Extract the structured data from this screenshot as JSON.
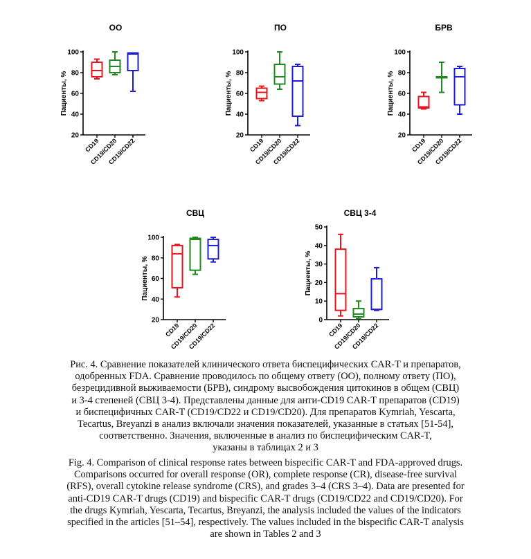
{
  "chart_data": [
    {
      "type": "box",
      "title": "ОО",
      "ylabel": "Пациенты, %",
      "ylim": [
        20,
        100
      ],
      "yticks": [
        20,
        40,
        60,
        80,
        100
      ],
      "categories": [
        "CD19",
        "CD19/CD20",
        "CD19/CD22"
      ],
      "series": [
        {
          "name": "CD19",
          "color": "#e8141c",
          "min": 74,
          "q1": 76,
          "median": 82,
          "q3": 90,
          "max": 93
        },
        {
          "name": "CD19/CD20",
          "color": "#1f8a1f",
          "min": 78,
          "q1": 80,
          "median": 86,
          "q3": 92,
          "max": 100
        },
        {
          "name": "CD19/CD22",
          "color": "#1c1cd6",
          "min": 62,
          "q1": 82,
          "median": 98,
          "q3": 99,
          "max": 99
        }
      ]
    },
    {
      "type": "box",
      "title": "ПО",
      "ylabel": "Пациенты, %",
      "ylim": [
        20,
        100
      ],
      "yticks": [
        20,
        40,
        60,
        80,
        100
      ],
      "categories": [
        "CD19",
        "CD19/CD20",
        "CD19/CD22"
      ],
      "series": [
        {
          "name": "CD19",
          "color": "#e8141c",
          "min": 53,
          "q1": 55,
          "median": 61,
          "q3": 65,
          "max": 67
        },
        {
          "name": "CD19/CD20",
          "color": "#1f8a1f",
          "min": 64,
          "q1": 69,
          "median": 76,
          "q3": 88,
          "max": 100
        },
        {
          "name": "CD19/CD22",
          "color": "#1c1cd6",
          "min": 29,
          "q1": 38,
          "median": 72,
          "q3": 86,
          "max": 88
        }
      ]
    },
    {
      "type": "box",
      "title": "БРВ",
      "ylabel": "Пациенты, %",
      "ylim": [
        20,
        100
      ],
      "yticks": [
        20,
        40,
        60,
        80,
        100
      ],
      "categories": [
        "CD19",
        "CD19/CD20",
        "CD19/CD22"
      ],
      "series": [
        {
          "name": "CD19",
          "color": "#e8141c",
          "min": 45,
          "q1": 46,
          "median": 47,
          "q3": 57,
          "max": 61
        },
        {
          "name": "CD19/CD20",
          "color": "#1f8a1f",
          "min": 61,
          "q1": 75,
          "median": 76,
          "q3": 76,
          "max": 90
        },
        {
          "name": "CD19/CD22",
          "color": "#1c1cd6",
          "min": 40,
          "q1": 49,
          "median": 76,
          "q3": 84,
          "max": 86
        }
      ]
    },
    {
      "type": "box",
      "title": "СВЦ",
      "ylabel": "Пациенты, %",
      "ylim": [
        20,
        100
      ],
      "yticks": [
        20,
        40,
        60,
        80,
        100
      ],
      "categories": [
        "CD19",
        "CD19/CD20",
        "CD19/CD22"
      ],
      "series": [
        {
          "name": "CD19",
          "color": "#e8141c",
          "min": 42,
          "q1": 51,
          "median": 84,
          "q3": 92,
          "max": 93
        },
        {
          "name": "CD19/CD20",
          "color": "#1f8a1f",
          "min": 64,
          "q1": 68,
          "median": 98,
          "q3": 99,
          "max": 100
        },
        {
          "name": "CD19/CD22",
          "color": "#1c1cd6",
          "min": 76,
          "q1": 79,
          "median": 92,
          "q3": 98,
          "max": 100
        }
      ]
    },
    {
      "type": "box",
      "title": "СВЦ 3-4",
      "ylabel": "Пациенты, %",
      "ylim": [
        0,
        50
      ],
      "yticks": [
        0,
        10,
        20,
        30,
        40,
        50
      ],
      "categories": [
        "CD19",
        "CD19/CD20",
        "CD19/CD22"
      ],
      "series": [
        {
          "name": "CD19",
          "color": "#e8141c",
          "min": 2,
          "q1": 5,
          "median": 14,
          "q3": 38,
          "max": 46
        },
        {
          "name": "CD19/CD20",
          "color": "#1f8a1f",
          "min": 0.5,
          "q1": 1.5,
          "median": 3,
          "q3": 6,
          "max": 10
        },
        {
          "name": "CD19/CD22",
          "color": "#1c1cd6",
          "min": 5,
          "q1": 5.5,
          "median": 5.5,
          "q3": 22,
          "max": 28
        }
      ]
    }
  ],
  "caption_ru": [
    "Рис. 4. Сравнение показателей клинического ответа биспецифических CAR-T и препаратов,",
    "одобренных FDA. Сравнение проводилось по общему ответу (ОО), полному ответу (ПО),",
    "безрецидивной выживаемости (БРВ), синдрому высвобождения цитокинов в общем (СВЦ)",
    "и 3-4 степеней (СВЦ 3-4). Представлены данные для анти-CD19 CAR-T препаратов (CD19)",
    "и биспецифичных CAR-T (CD19/CD22 и CD19/CD20). Для препаратов Kymriah, Yescarta,",
    "Tecartus, Breyanzi в анализ включали значения показателей, указанные в статьях [51-54],",
    "соответственно. Значения, включенные в анализ по биспецифическим CAR-T,",
    "указаны в таблицах 2 и 3"
  ],
  "caption_en": [
    "Fig. 4. Comparison of clinical response rates between bispecific CAR-T and FDA-approved drugs.",
    "Comparisons occurred for overall response (OR), complete response (CR), disease-free survival",
    "(RFS), overall cytokine release syndrome (CRS), and grades 3–4 (CRS 3–4). Data are presented for",
    "anti-CD19 CAR-T drugs (CD19) and bispecific CAR-T drugs (CD19/CD22 and CD19/CD20). For",
    "the drugs Kymriah, Yescarta, Tecartus, Breyanzi, the analysis included the values of the indicators",
    "specified in the articles [51–54], respectively. The values included in the bispecific CAR-T analysis",
    "are shown in Tables 2 and 3"
  ]
}
